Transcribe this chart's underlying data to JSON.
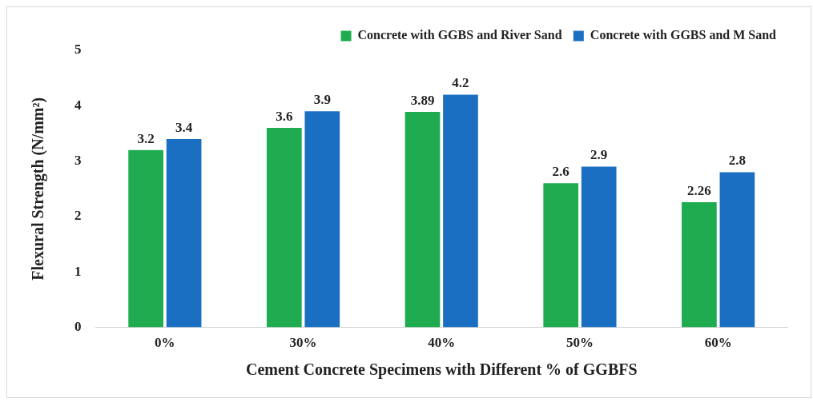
{
  "chart_data": {
    "type": "bar",
    "xlabel": "Cement Concrete Specimens with Different % of GGBFS",
    "ylabel": "Flexural Strength (N/mm²)",
    "categories": [
      "0%",
      "30%",
      "40%",
      "50%",
      "60%"
    ],
    "series": [
      {
        "name": "Concrete with GGBS and River Sand",
        "color": "#1fab4f",
        "values": [
          3.2,
          3.6,
          3.89,
          2.6,
          2.26
        ]
      },
      {
        "name": "Concrete with GGBS and M Sand",
        "color": "#1b6fc2",
        "values": [
          3.4,
          3.9,
          4.2,
          2.9,
          2.8
        ]
      }
    ],
    "ylim": [
      0,
      5
    ],
    "yticks": [
      0,
      1,
      2,
      3,
      4,
      5
    ],
    "grid": false,
    "legend": "top right",
    "data_labels": true
  }
}
